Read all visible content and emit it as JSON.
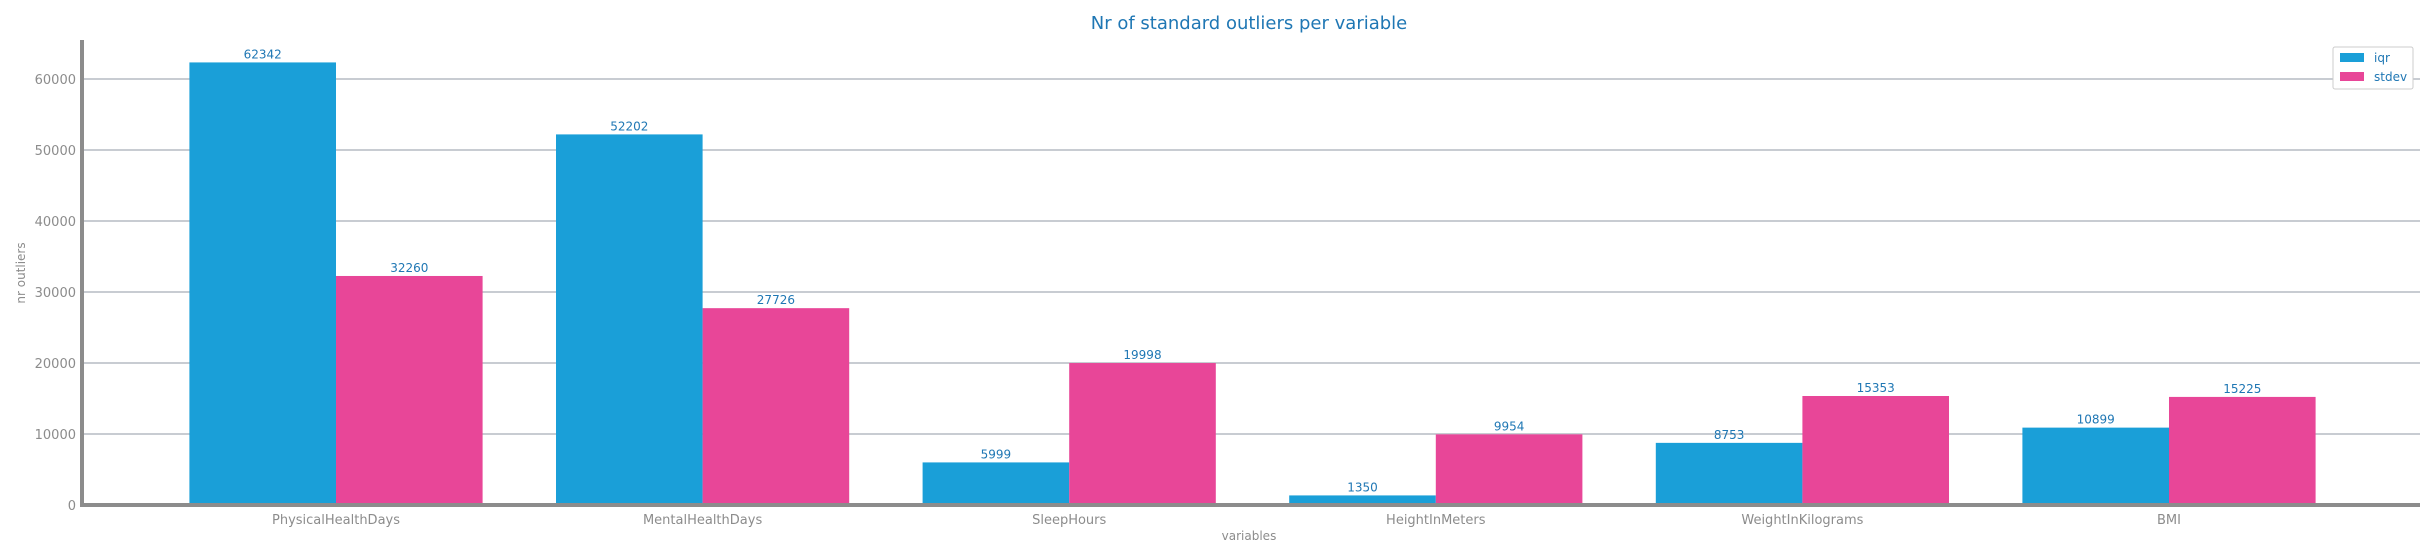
{
  "chart_data": {
    "type": "bar",
    "title": "Nr of standard outliers per variable",
    "xlabel": "variables",
    "ylabel": "nr outliers",
    "categories": [
      "PhysicalHealthDays",
      "MentalHealthDays",
      "SleepHours",
      "HeightInMeters",
      "WeightInKilograms",
      "BMI"
    ],
    "series": [
      {
        "name": "iqr",
        "color": "#1a9fd8",
        "values": [
          62342,
          52202,
          5999,
          1350,
          8753,
          10899
        ]
      },
      {
        "name": "stdev",
        "color": "#e84698",
        "values": [
          32260,
          27726,
          19998,
          9954,
          15353,
          15225
        ]
      }
    ],
    "ylim": [
      0,
      65500
    ],
    "yticks": [
      0,
      10000,
      20000,
      30000,
      40000,
      50000,
      60000
    ],
    "grid": true,
    "legend_position": "top-right"
  }
}
